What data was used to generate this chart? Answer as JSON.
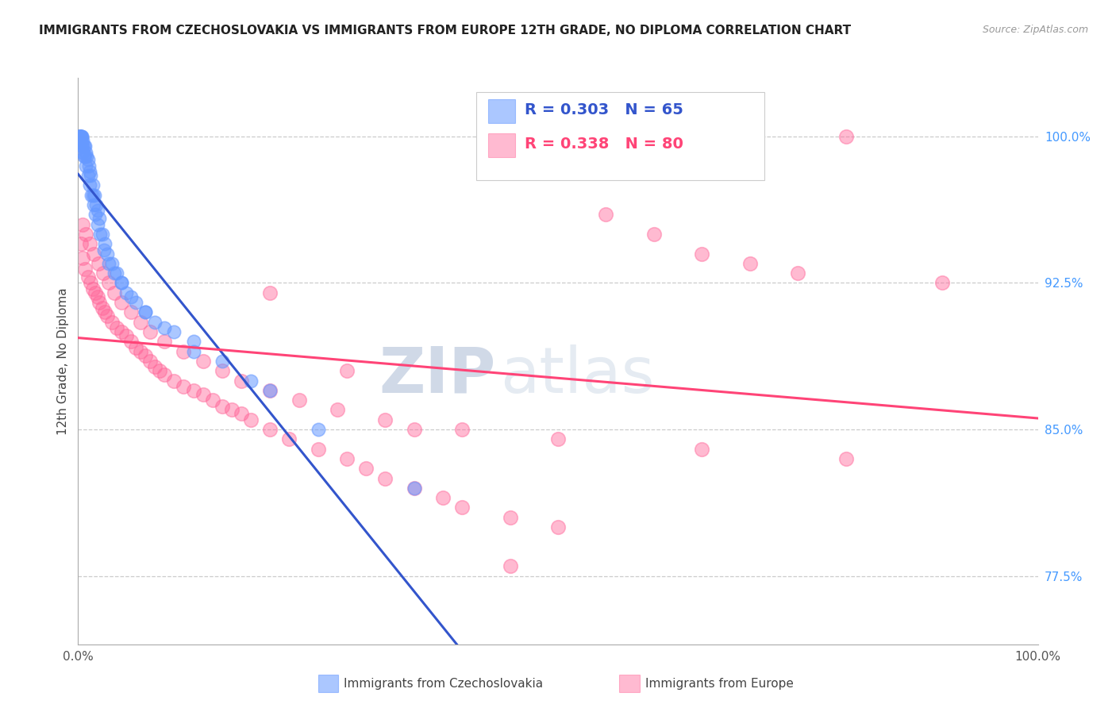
{
  "title": "IMMIGRANTS FROM CZECHOSLOVAKIA VS IMMIGRANTS FROM EUROPE 12TH GRADE, NO DIPLOMA CORRELATION CHART",
  "source": "Source: ZipAtlas.com",
  "ylabel": "12th Grade, No Diploma",
  "legend_label_blue": "Immigrants from Czechoslovakia",
  "legend_label_pink": "Immigrants from Europe",
  "R_blue": 0.303,
  "N_blue": 65,
  "R_pink": 0.338,
  "N_pink": 80,
  "blue_color": "#6699FF",
  "pink_color": "#FF6699",
  "blue_line_color": "#3355CC",
  "pink_line_color": "#FF4477",
  "watermark_zip": "ZIP",
  "watermark_atlas": "atlas",
  "right_yticks": [
    77.5,
    85.0,
    92.5,
    100.0
  ],
  "xlim": [
    0,
    100
  ],
  "ylim": [
    74,
    103
  ],
  "blue_x": [
    0.1,
    0.15,
    0.2,
    0.25,
    0.3,
    0.35,
    0.4,
    0.5,
    0.6,
    0.7,
    0.8,
    0.9,
    1.0,
    1.1,
    1.2,
    1.3,
    1.5,
    1.7,
    1.9,
    2.0,
    2.2,
    2.5,
    2.8,
    3.0,
    3.5,
    4.0,
    4.5,
    5.0,
    6.0,
    7.0,
    8.0,
    10.0,
    12.0,
    15.0,
    20.0,
    0.2,
    0.3,
    0.4,
    0.5,
    0.6,
    0.8,
    1.0,
    1.2,
    1.4,
    1.6,
    1.8,
    2.0,
    2.3,
    2.7,
    3.2,
    3.8,
    4.5,
    5.5,
    7.0,
    9.0,
    12.0,
    18.0,
    25.0,
    35.0,
    0.1,
    0.2,
    0.3,
    0.5,
    0.7,
    1.5
  ],
  "blue_y": [
    100.0,
    100.0,
    100.0,
    100.0,
    100.0,
    100.0,
    100.0,
    99.8,
    99.5,
    99.5,
    99.2,
    99.0,
    98.8,
    98.5,
    98.2,
    98.0,
    97.5,
    97.0,
    96.5,
    96.2,
    95.8,
    95.0,
    94.5,
    94.0,
    93.5,
    93.0,
    92.5,
    92.0,
    91.5,
    91.0,
    90.5,
    90.0,
    89.5,
    88.5,
    87.0,
    100.0,
    99.8,
    99.5,
    99.2,
    99.0,
    98.5,
    98.0,
    97.5,
    97.0,
    96.5,
    96.0,
    95.5,
    95.0,
    94.2,
    93.5,
    93.0,
    92.5,
    91.8,
    91.0,
    90.2,
    89.0,
    87.5,
    85.0,
    82.0,
    100.0,
    100.0,
    100.0,
    99.5,
    99.0,
    97.0
  ],
  "pink_x": [
    0.3,
    0.5,
    0.7,
    1.0,
    1.3,
    1.5,
    1.8,
    2.0,
    2.2,
    2.5,
    2.8,
    3.0,
    3.5,
    4.0,
    4.5,
    5.0,
    5.5,
    6.0,
    6.5,
    7.0,
    7.5,
    8.0,
    8.5,
    9.0,
    10.0,
    11.0,
    12.0,
    13.0,
    14.0,
    15.0,
    16.0,
    17.0,
    18.0,
    20.0,
    22.0,
    25.0,
    28.0,
    30.0,
    32.0,
    35.0,
    38.0,
    40.0,
    45.0,
    50.0,
    55.0,
    60.0,
    65.0,
    70.0,
    75.0,
    80.0,
    90.0,
    0.5,
    0.8,
    1.2,
    1.6,
    2.1,
    2.6,
    3.2,
    3.8,
    4.5,
    5.5,
    6.5,
    7.5,
    9.0,
    11.0,
    13.0,
    15.0,
    17.0,
    20.0,
    23.0,
    27.0,
    32.0,
    40.0,
    50.0,
    65.0,
    80.0,
    20.0,
    28.0,
    35.0,
    45.0
  ],
  "pink_y": [
    94.5,
    93.8,
    93.2,
    92.8,
    92.5,
    92.2,
    92.0,
    91.8,
    91.5,
    91.2,
    91.0,
    90.8,
    90.5,
    90.2,
    90.0,
    89.8,
    89.5,
    89.2,
    89.0,
    88.8,
    88.5,
    88.2,
    88.0,
    87.8,
    87.5,
    87.2,
    87.0,
    86.8,
    86.5,
    86.2,
    86.0,
    85.8,
    85.5,
    85.0,
    84.5,
    84.0,
    83.5,
    83.0,
    82.5,
    82.0,
    81.5,
    81.0,
    80.5,
    80.0,
    96.0,
    95.0,
    94.0,
    93.5,
    93.0,
    100.0,
    92.5,
    95.5,
    95.0,
    94.5,
    94.0,
    93.5,
    93.0,
    92.5,
    92.0,
    91.5,
    91.0,
    90.5,
    90.0,
    89.5,
    89.0,
    88.5,
    88.0,
    87.5,
    87.0,
    86.5,
    86.0,
    85.5,
    85.0,
    84.5,
    84.0,
    83.5,
    92.0,
    88.0,
    85.0,
    78.0
  ]
}
